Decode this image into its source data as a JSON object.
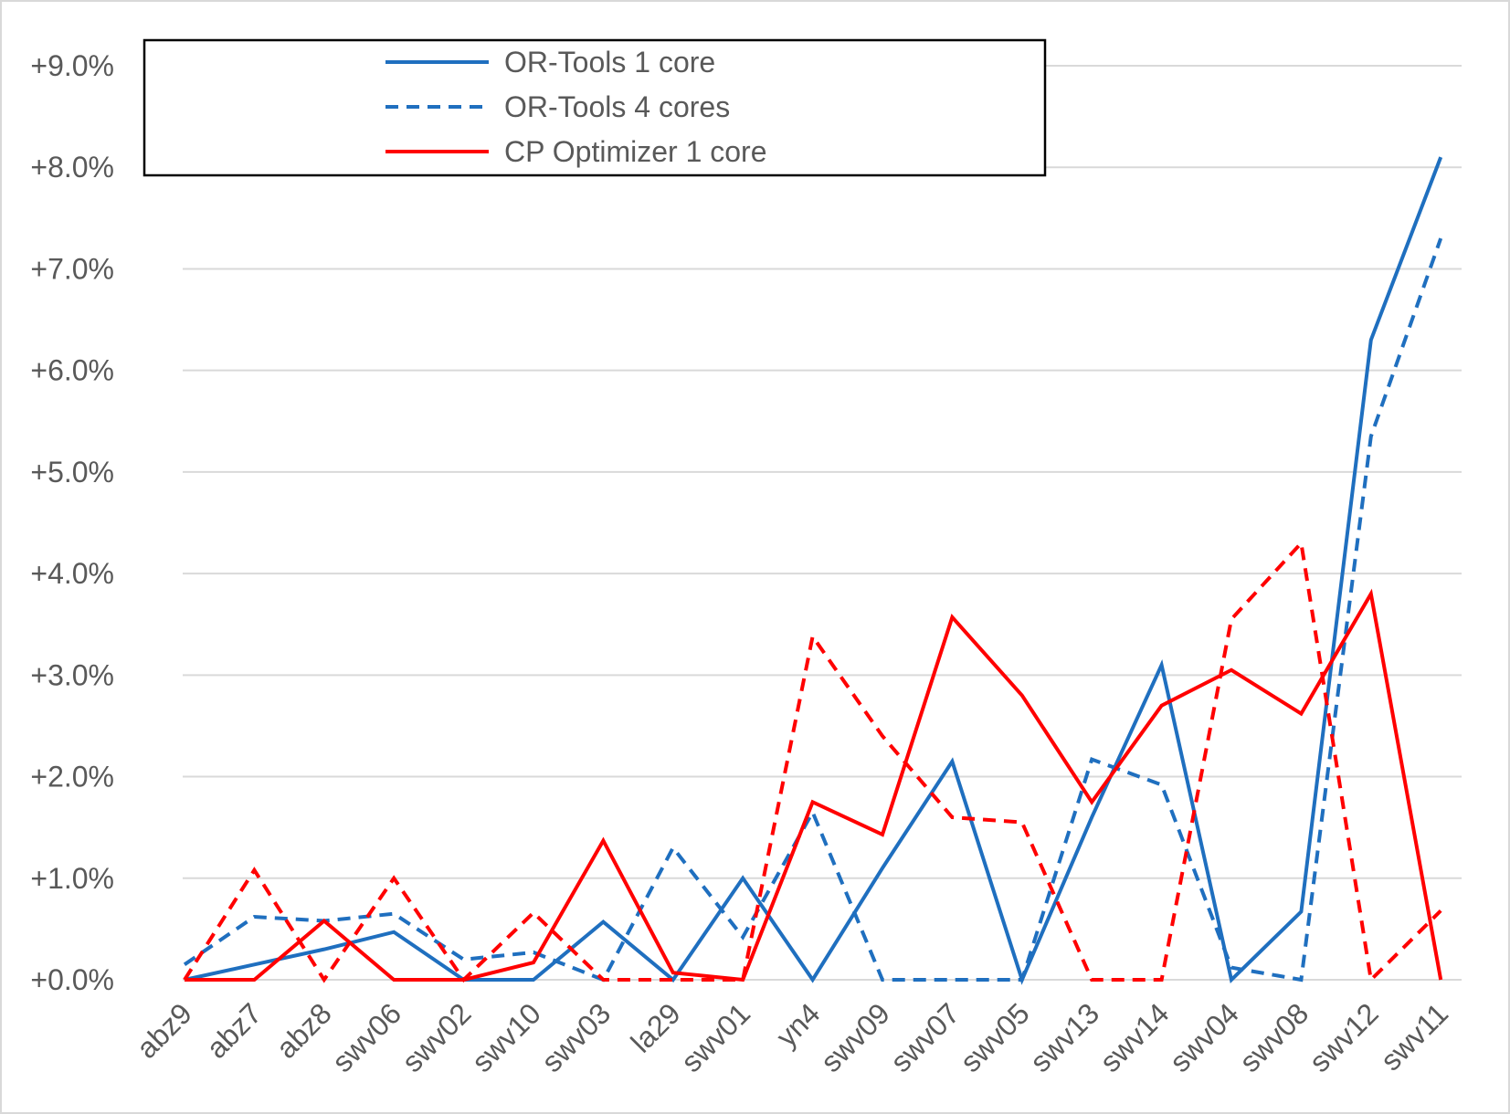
{
  "chart_data": {
    "type": "line",
    "categories": [
      "abz9",
      "abz7",
      "abz8",
      "swv06",
      "swv02",
      "swv10",
      "swv03",
      "la29",
      "swv01",
      "yn4",
      "swv09",
      "swv07",
      "swv05",
      "swv13",
      "swv14",
      "swv04",
      "swv08",
      "swv12",
      "swv11"
    ],
    "ylim": [
      0,
      9
    ],
    "yticks": [
      0,
      1,
      2,
      3,
      4,
      5,
      6,
      7,
      8,
      9
    ],
    "ytick_labels": [
      "+0.0%",
      "+1.0%",
      "+2.0%",
      "+3.0%",
      "+4.0%",
      "+5.0%",
      "+6.0%",
      "+7.0%",
      "+8.0%",
      "+9.0%"
    ],
    "grid": true,
    "legend_position": "top-left",
    "series": [
      {
        "name": "OR-Tools 1 core",
        "color": "#1f6fbf",
        "dash": "solid",
        "in_legend": true,
        "values": [
          0.0,
          0.15,
          0.3,
          0.47,
          0.0,
          0.0,
          0.57,
          0.0,
          1.0,
          0.0,
          1.1,
          2.15,
          0.0,
          1.6,
          3.1,
          0.0,
          0.67,
          6.3,
          8.1
        ]
      },
      {
        "name": "OR-Tools 4 cores",
        "color": "#1f6fbf",
        "dash": "dashed",
        "in_legend": true,
        "values": [
          0.15,
          0.62,
          0.58,
          0.65,
          0.2,
          0.27,
          0.0,
          1.3,
          0.42,
          1.65,
          0.0,
          0.0,
          0.0,
          2.17,
          1.92,
          0.12,
          0.0,
          5.35,
          7.3
        ]
      },
      {
        "name": "CP Optimizer 1 core",
        "color": "#ff0000",
        "dash": "solid",
        "in_legend": true,
        "values": [
          0.0,
          0.0,
          0.58,
          0.0,
          0.0,
          0.17,
          1.37,
          0.07,
          0.0,
          1.75,
          1.43,
          3.57,
          2.8,
          1.75,
          2.7,
          3.05,
          2.62,
          3.8,
          0.0
        ]
      },
      {
        "color": "#ff0000",
        "dash": "dashed",
        "in_legend": false,
        "values": [
          0.0,
          1.08,
          0.0,
          1.0,
          0.0,
          0.66,
          0.0,
          0.0,
          0.0,
          3.38,
          2.4,
          1.6,
          1.55,
          0.0,
          0.0,
          3.55,
          4.3,
          0.0,
          0.68
        ]
      }
    ]
  }
}
